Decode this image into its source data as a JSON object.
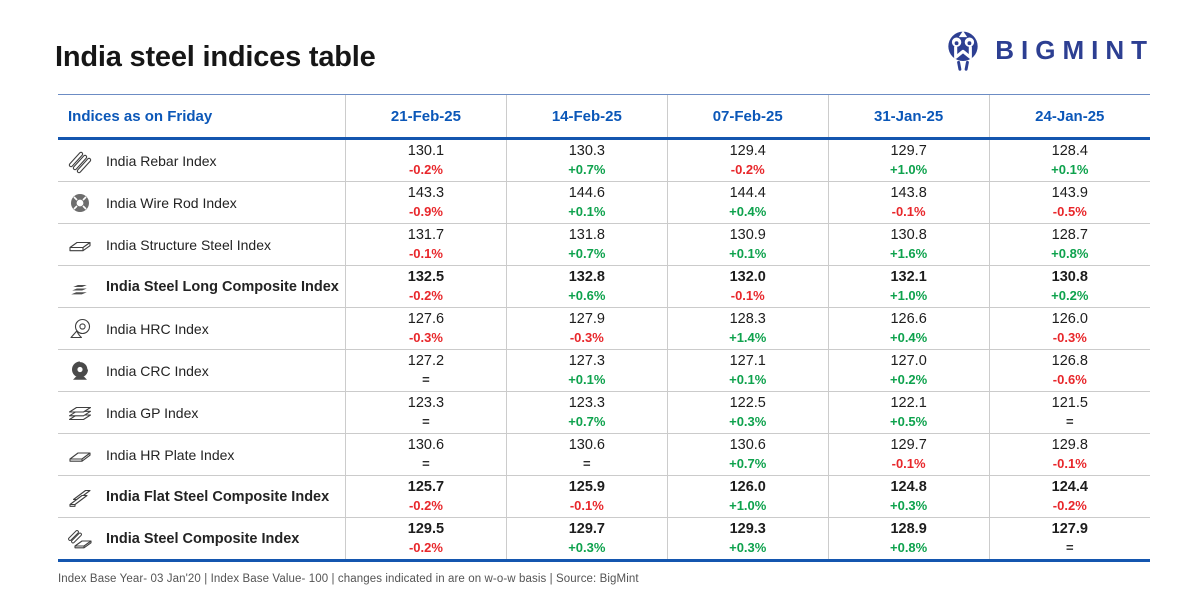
{
  "page": {
    "title": "India steel indices table"
  },
  "logo": {
    "brand": "BIGMINT",
    "brand_color": "#2d3f92"
  },
  "colors": {
    "header_blue": "#0b57b8",
    "rule_blue": "#1456af",
    "positive_green": "#0ea24d",
    "negative_red": "#e8272b",
    "separator_gray": "#cbcbcb"
  },
  "footer": {
    "note": "Index Base Year- 03 Jan'20 | Index Base Value- 100 | changes indicated in are on w-o-w basis | Source: BigMint"
  },
  "chart_data": {
    "type": "table",
    "title": "India steel indices table",
    "columns": [
      "Indices as on Friday",
      "21-Feb-25",
      "14-Feb-25",
      "07-Feb-25",
      "31-Jan-25",
      "24-Jan-25"
    ],
    "rows": [
      {
        "icon": "rebar-icon",
        "label": "India Rebar Index",
        "emphasis": false,
        "values": [
          130.1,
          130.3,
          129.4,
          129.7,
          128.4
        ],
        "changes": [
          "-0.2%",
          "+0.7%",
          "-0.2%",
          "+1.0%",
          "+0.1%"
        ]
      },
      {
        "icon": "wire-rod-icon",
        "label": "India Wire Rod Index",
        "emphasis": false,
        "values": [
          143.3,
          144.6,
          144.4,
          143.8,
          143.9
        ],
        "changes": [
          "-0.9%",
          "+0.1%",
          "+0.4%",
          "-0.1%",
          "-0.5%"
        ]
      },
      {
        "icon": "structure-steel-icon",
        "label": "India Structure Steel Index",
        "emphasis": false,
        "values": [
          131.7,
          131.8,
          130.9,
          130.8,
          128.7
        ],
        "changes": [
          "-0.1%",
          "+0.7%",
          "+0.1%",
          "+1.6%",
          "+0.8%"
        ]
      },
      {
        "icon": "steel-long-composite-icon",
        "label": "India Steel Long Composite Index",
        "emphasis": true,
        "values": [
          132.5,
          132.8,
          132.0,
          132.1,
          130.8
        ],
        "changes": [
          "-0.2%",
          "+0.6%",
          "-0.1%",
          "+1.0%",
          "+0.2%"
        ]
      },
      {
        "icon": "hrc-coil-icon",
        "label": "India HRC Index",
        "emphasis": false,
        "values": [
          127.6,
          127.9,
          128.3,
          126.6,
          126.0
        ],
        "changes": [
          "-0.3%",
          "-0.3%",
          "+1.4%",
          "+0.4%",
          "-0.3%"
        ]
      },
      {
        "icon": "crc-coil-icon",
        "label": "India CRC Index",
        "emphasis": false,
        "values": [
          127.2,
          127.3,
          127.1,
          127.0,
          126.8
        ],
        "changes": [
          "=",
          "+0.1%",
          "+0.1%",
          "+0.2%",
          "-0.6%"
        ]
      },
      {
        "icon": "gp-sheets-icon",
        "label": "India GP Index",
        "emphasis": false,
        "values": [
          123.3,
          123.3,
          122.5,
          122.1,
          121.5
        ],
        "changes": [
          "=",
          "+0.7%",
          "+0.3%",
          "+0.5%",
          "="
        ]
      },
      {
        "icon": "hr-plate-icon",
        "label": "India HR Plate Index",
        "emphasis": false,
        "values": [
          130.6,
          130.6,
          130.6,
          129.7,
          129.8
        ],
        "changes": [
          "=",
          "=",
          "+0.7%",
          "-0.1%",
          "-0.1%"
        ]
      },
      {
        "icon": "flat-steel-composite-icon",
        "label": "India Flat Steel Composite Index",
        "emphasis": true,
        "values": [
          125.7,
          125.9,
          126.0,
          124.8,
          124.4
        ],
        "changes": [
          "-0.2%",
          "-0.1%",
          "+1.0%",
          "+0.3%",
          "-0.2%"
        ]
      },
      {
        "icon": "steel-composite-icon",
        "label": "India Steel Composite Index",
        "emphasis": true,
        "values": [
          129.5,
          129.7,
          129.3,
          128.9,
          127.9
        ],
        "changes": [
          "-0.2%",
          "+0.3%",
          "+0.3%",
          "+0.8%",
          "="
        ]
      }
    ]
  }
}
